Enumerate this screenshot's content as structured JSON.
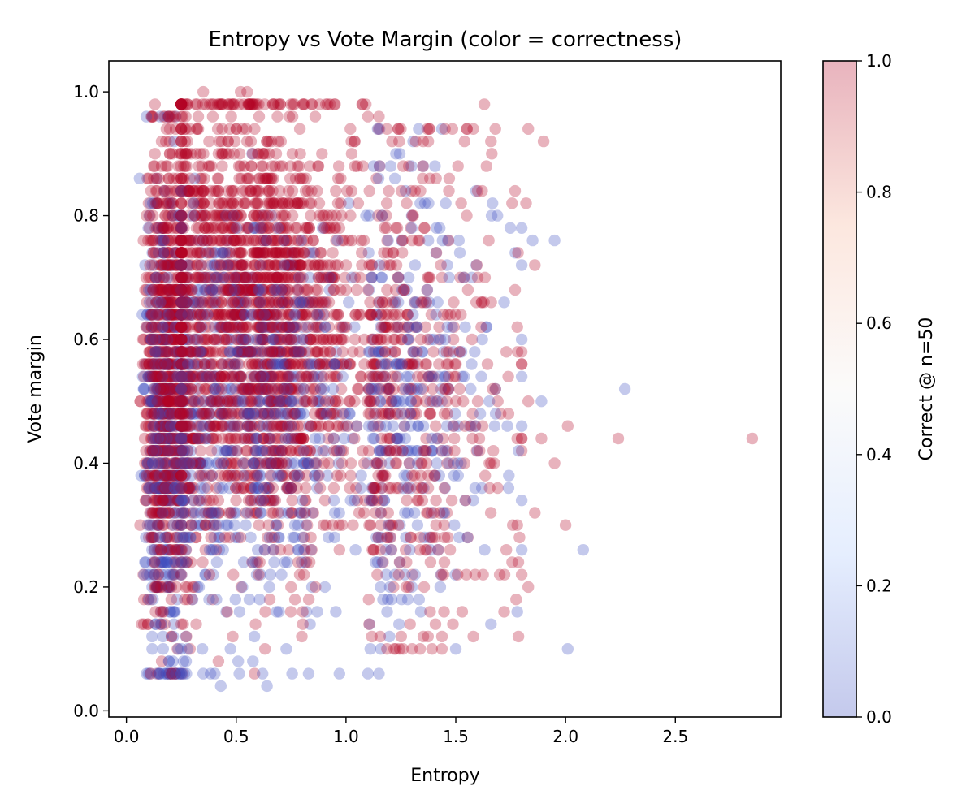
{
  "chart_data": {
    "type": "scatter",
    "title": "Entropy vs Vote Margin (color = correctness)",
    "xlabel": "Entropy",
    "ylabel": "Vote margin",
    "xlim": [
      -0.08,
      2.98
    ],
    "ylim": [
      -0.01,
      1.05
    ],
    "xticks": [
      "0.0",
      "0.5",
      "1.0",
      "1.5",
      "2.0",
      "2.5"
    ],
    "yticks": [
      "0.0",
      "0.2",
      "0.4",
      "0.6",
      "0.8",
      "1.0"
    ],
    "colorbar": {
      "label": "Correct @ n=50",
      "range": [
        0,
        1
      ],
      "ticks": [
        "0.0",
        "0.2",
        "0.4",
        "0.6",
        "0.8",
        "1.0"
      ],
      "colormap": "coolwarm",
      "low_color": "#3b4cc0",
      "mid_color": "#f2f0ee",
      "high_color": "#b40426",
      "alpha": 0.3
    },
    "grid": false,
    "legend": "none",
    "series": [
      {
        "values_format": "[entropy, vote_margin, correct]",
        "points": [
          [
            0.06,
            0.86,
            0
          ],
          [
            0.35,
            1.0,
            1
          ],
          [
            0.52,
            1.0,
            1
          ],
          [
            0.55,
            1.0,
            1
          ],
          [
            0.38,
            0.98,
            1
          ],
          [
            0.13,
            0.98,
            1
          ],
          [
            0.63,
            0.98,
            1
          ],
          [
            0.7,
            0.98,
            1
          ],
          [
            0.95,
            0.98,
            1
          ],
          [
            1.63,
            0.98,
            1
          ],
          [
            1.1,
            0.96,
            1
          ],
          [
            1.15,
            0.96,
            1
          ],
          [
            0.86,
            0.96,
            1
          ],
          [
            1.02,
            0.94,
            1
          ],
          [
            1.25,
            0.94,
            1
          ],
          [
            1.37,
            0.94,
            1
          ],
          [
            1.55,
            0.94,
            1
          ],
          [
            1.58,
            0.94,
            1
          ],
          [
            1.68,
            0.94,
            1
          ],
          [
            1.83,
            0.94,
            1
          ],
          [
            1.04,
            0.92,
            1
          ],
          [
            1.21,
            0.92,
            1
          ],
          [
            1.54,
            0.92,
            1
          ],
          [
            1.66,
            0.92,
            1
          ],
          [
            1.9,
            0.92,
            1
          ],
          [
            1.26,
            0.88,
            1
          ],
          [
            1.35,
            0.88,
            1
          ],
          [
            1.51,
            0.88,
            1
          ],
          [
            1.64,
            0.88,
            1
          ],
          [
            1.47,
            0.86,
            1
          ],
          [
            1.6,
            0.84,
            1
          ],
          [
            1.62,
            0.84,
            1
          ],
          [
            1.77,
            0.84,
            1
          ],
          [
            1.82,
            0.82,
            1
          ],
          [
            1.55,
            0.8,
            1
          ],
          [
            1.65,
            0.76,
            1
          ],
          [
            1.85,
            0.76,
            0
          ],
          [
            1.95,
            0.76,
            0
          ],
          [
            1.86,
            0.72,
            1
          ],
          [
            1.6,
            0.7,
            1
          ],
          [
            1.77,
            0.68,
            1
          ],
          [
            1.72,
            0.66,
            0
          ],
          [
            1.78,
            0.62,
            1
          ],
          [
            1.73,
            0.58,
            1
          ],
          [
            1.68,
            0.52,
            1
          ],
          [
            1.6,
            0.5,
            1
          ],
          [
            1.83,
            0.5,
            1
          ],
          [
            1.89,
            0.5,
            0
          ],
          [
            1.74,
            0.48,
            1
          ],
          [
            2.01,
            0.46,
            1
          ],
          [
            1.78,
            0.44,
            1
          ],
          [
            1.89,
            0.44,
            1
          ],
          [
            2.24,
            0.44,
            1
          ],
          [
            2.27,
            0.52,
            0
          ],
          [
            2.85,
            0.44,
            1
          ],
          [
            1.95,
            0.4,
            1
          ],
          [
            1.66,
            0.4,
            1
          ],
          [
            1.74,
            0.36,
            0
          ],
          [
            1.86,
            0.32,
            1
          ],
          [
            1.78,
            0.3,
            1
          ],
          [
            2.0,
            0.3,
            1
          ],
          [
            1.79,
            0.28,
            1
          ],
          [
            1.73,
            0.26,
            1
          ],
          [
            2.08,
            0.26,
            0
          ],
          [
            1.7,
            0.22,
            1
          ],
          [
            1.83,
            0.2,
            1
          ],
          [
            1.78,
            0.16,
            0
          ],
          [
            1.72,
            0.16,
            1
          ],
          [
            1.66,
            0.14,
            0
          ],
          [
            1.58,
            0.12,
            1
          ],
          [
            1.5,
            0.1,
            0
          ],
          [
            2.01,
            0.1,
            0
          ],
          [
            0.43,
            0.04,
            0
          ],
          [
            0.64,
            0.04,
            0
          ],
          [
            0.62,
            0.06,
            0
          ],
          [
            0.11,
            0.06,
            1
          ],
          [
            0.15,
            0.06,
            0
          ],
          [
            0.25,
            0.06,
            0
          ],
          [
            0.35,
            0.06,
            0
          ],
          [
            0.83,
            0.06,
            0
          ],
          [
            0.97,
            0.06,
            0
          ],
          [
            1.1,
            0.06,
            0
          ],
          [
            1.15,
            0.06,
            0
          ]
        ]
      }
    ]
  }
}
